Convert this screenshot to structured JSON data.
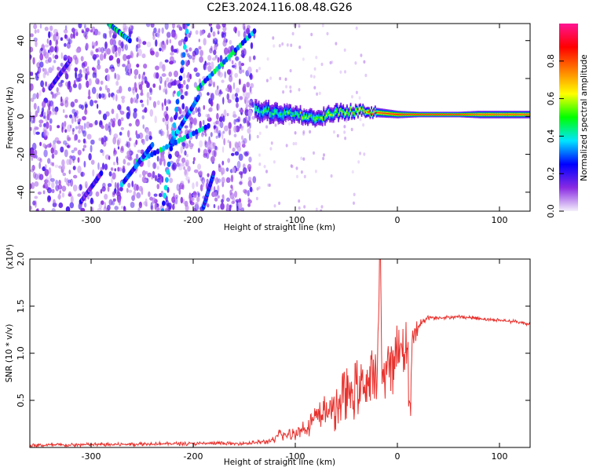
{
  "title": "C2E3.2024.116.08.48.G26",
  "chart_data": [
    {
      "type": "heatmap",
      "xlabel": "Height of straight line (km)",
      "ylabel": "Frequency (Hz)",
      "xlim": [
        -360,
        130
      ],
      "ylim": [
        -50,
        49
      ],
      "x_ticks": [
        -300,
        -200,
        -100,
        0,
        100
      ],
      "y_ticks": [
        -40,
        -20,
        0,
        20,
        40
      ],
      "colorbar": {
        "label": "Normalized spectral amplitude",
        "range": [
          0,
          1
        ],
        "ticks": [
          0.0,
          0.2,
          0.4,
          0.6,
          0.8
        ],
        "tick_labels": [
          "0.0",
          "0.2",
          "0.4",
          "0.6",
          "0.8"
        ],
        "colormap": [
          "#f4f0fb",
          "#8a2be2",
          "#0000ff",
          "#00e5ff",
          "#00ff00",
          "#ffff00",
          "#ff7f00",
          "#ff0000",
          "#ff1493"
        ]
      },
      "noise_region": {
        "x_range": [
          -360,
          -140
        ],
        "description_level": 0.1
      },
      "trend_lines": [
        {
          "x": [
            -283,
            -262
          ],
          "y": [
            49,
            40
          ],
          "level": 0.3
        },
        {
          "x": [
            -255,
            -185
          ],
          "y": [
            -24,
            -5
          ],
          "level": 0.3
        },
        {
          "x": [
            -222,
            -195
          ],
          "y": [
            -14,
            10
          ],
          "level": 0.25
        },
        {
          "x": [
            -195,
            -140
          ],
          "y": [
            15,
            45
          ],
          "level": 0.3
        },
        {
          "x": [
            -270,
            -240
          ],
          "y": [
            -36,
            -15
          ],
          "level": 0.25
        },
        {
          "x": [
            -230,
            -205
          ],
          "y": [
            -50,
            49
          ],
          "level": 0.25
        },
        {
          "x": [
            -190,
            -180
          ],
          "y": [
            -48,
            -30
          ],
          "level": 0.2
        },
        {
          "x": [
            -340,
            -320
          ],
          "y": [
            15,
            30
          ],
          "level": 0.15
        },
        {
          "x": [
            -310,
            -290
          ],
          "y": [
            -45,
            -30
          ],
          "level": 0.15
        }
      ],
      "signal_band": {
        "x": [
          -140,
          -120,
          -100,
          -80,
          -60,
          -40,
          -20,
          0,
          20,
          40,
          60,
          80,
          100,
          130
        ],
        "center_y": [
          3,
          2,
          1,
          -1,
          2,
          3,
          2,
          1,
          1,
          1,
          1,
          1,
          1,
          1
        ],
        "half_width": [
          5,
          5,
          4,
          4,
          4,
          3,
          2.5,
          2,
          1.5,
          1.5,
          1.5,
          2,
          2,
          2
        ],
        "peak_level": [
          0.45,
          0.45,
          0.5,
          0.5,
          0.55,
          0.6,
          0.8,
          0.85,
          0.85,
          0.85,
          0.85,
          0.8,
          0.8,
          0.8
        ]
      }
    },
    {
      "type": "line",
      "xlabel": "Height of straight line (km)",
      "ylabel": "SNR (10 * v/v)",
      "y_scale_label": "(x10⁴)",
      "xlim": [
        -360,
        130
      ],
      "ylim": [
        0,
        2.0
      ],
      "x_ticks": [
        -300,
        -200,
        -100,
        0,
        100
      ],
      "y_ticks": [
        0.5,
        1.0,
        1.5,
        2.0
      ],
      "y_tick_labels": [
        "0.5",
        "1.0",
        "1.5",
        "2.0"
      ],
      "series": [
        {
          "color": "#e8322e",
          "x": [
            -360,
            -340,
            -320,
            -300,
            -280,
            -260,
            -240,
            -220,
            -200,
            -180,
            -160,
            -140,
            -130,
            -120,
            -115,
            -110,
            -100,
            -90,
            -80,
            -70,
            -60,
            -50,
            -40,
            -30,
            -20,
            -17,
            -15,
            -10,
            -5,
            0,
            5,
            10,
            12,
            15,
            20,
            25,
            30,
            40,
            50,
            60,
            70,
            80,
            90,
            100,
            110,
            120,
            130
          ],
          "y": [
            0.02,
            0.025,
            0.025,
            0.03,
            0.03,
            0.035,
            0.04,
            0.04,
            0.04,
            0.045,
            0.04,
            0.05,
            0.06,
            0.08,
            0.15,
            0.12,
            0.15,
            0.22,
            0.3,
            0.38,
            0.45,
            0.55,
            0.62,
            0.68,
            0.72,
            2.0,
            0.8,
            0.85,
            0.9,
            1.0,
            1.05,
            1.1,
            0.3,
            1.2,
            1.25,
            1.35,
            1.38,
            1.38,
            1.38,
            1.39,
            1.38,
            1.37,
            1.36,
            1.35,
            1.34,
            1.33,
            1.31
          ],
          "spike_amplitude": [
            0.02,
            0.02,
            0.02,
            0.02,
            0.02,
            0.02,
            0.02,
            0.02,
            0.02,
            0.02,
            0.02,
            0.02,
            0.03,
            0.04,
            0.08,
            0.06,
            0.08,
            0.12,
            0.15,
            0.2,
            0.28,
            0.3,
            0.32,
            0.35,
            0.35,
            0.0,
            0.35,
            0.3,
            0.35,
            0.35,
            0.3,
            0.3,
            0.0,
            0.12,
            0.1,
            0.04,
            0.03,
            0.02,
            0.02,
            0.02,
            0.02,
            0.02,
            0.02,
            0.02,
            0.02,
            0.02,
            0.02
          ]
        }
      ]
    }
  ]
}
